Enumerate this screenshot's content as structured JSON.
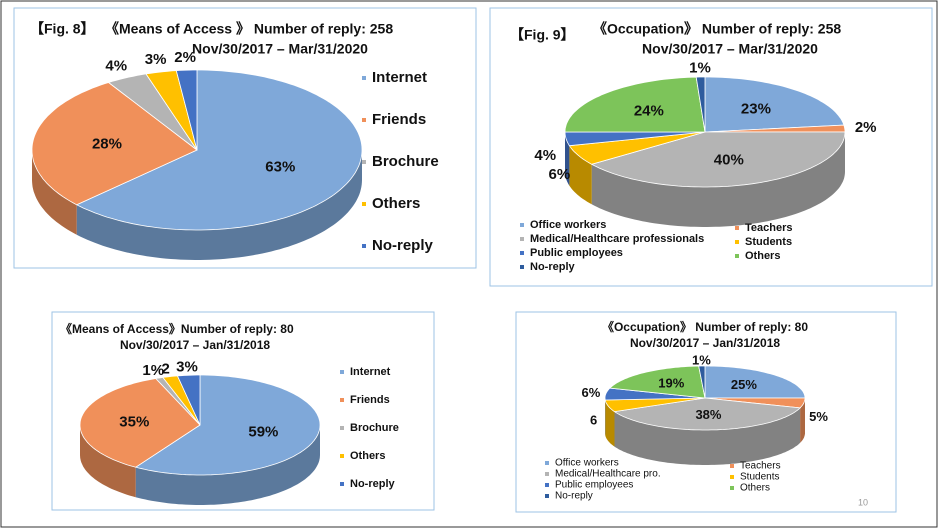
{
  "page_number": "10",
  "chart_data": [
    {
      "type": "pie",
      "figure_label": "【Fig. 8】",
      "title": "《Means of Access 》 Number of reply: 258",
      "subtitle": "Nov/30/2017 – Mar/31/2020",
      "legend": "right",
      "series": [
        {
          "name": "Internet",
          "color": "#7fa8d9",
          "values": [
            63
          ]
        },
        {
          "name": "Friends",
          "color": "#f0905a",
          "values": [
            28
          ]
        },
        {
          "name": "Brochure",
          "color": "#b4b4b4",
          "values": [
            4
          ]
        },
        {
          "name": "Others",
          "color": "#ffc000",
          "values": [
            3
          ]
        },
        {
          "name": "No-reply",
          "color": "#4472c4",
          "values": [
            2
          ]
        }
      ]
    },
    {
      "type": "pie",
      "figure_label": "【Fig. 9】",
      "title": "《Occupation》 Number of reply: 258",
      "subtitle": "Nov/30/2017 – Mar/31/2020",
      "legend": "bottom",
      "series": [
        {
          "name": "Office workers",
          "color": "#7fa8d9",
          "values": [
            23
          ]
        },
        {
          "name": "Teachers",
          "color": "#f0905a",
          "values": [
            2
          ]
        },
        {
          "name": "Medical/Healthcare professionals",
          "color": "#b4b4b4",
          "values": [
            40
          ]
        },
        {
          "name": "Students",
          "color": "#ffc000",
          "values": [
            6
          ]
        },
        {
          "name": "Public employees",
          "color": "#4472c4",
          "values": [
            4
          ]
        },
        {
          "name": "Others",
          "color": "#7dc45a",
          "values": [
            24
          ]
        },
        {
          "name": "No-reply",
          "color": "#2e5c9e",
          "values": [
            1
          ]
        }
      ]
    },
    {
      "type": "pie",
      "title": "《Means of Access》Number of reply: 80",
      "subtitle": "Nov/30/2017 – Jan/31/2018",
      "legend": "right",
      "series": [
        {
          "name": "Internet",
          "color": "#7fa8d9",
          "values": [
            59
          ]
        },
        {
          "name": "Friends",
          "color": "#f0905a",
          "values": [
            35
          ]
        },
        {
          "name": "Brochure",
          "color": "#b4b4b4",
          "values": [
            1
          ]
        },
        {
          "name": "Others",
          "color": "#ffc000",
          "values": [
            2
          ],
          "value_labels": [
            "2"
          ]
        },
        {
          "name": "No-reply",
          "color": "#4472c4",
          "values": [
            3
          ]
        }
      ]
    },
    {
      "type": "pie",
      "title": "《Occupation》 Number of reply: 80",
      "subtitle": "Nov/30/2017 – Jan/31/2018",
      "legend": "bottom",
      "series": [
        {
          "name": "Office workers",
          "color": "#7fa8d9",
          "values": [
            25
          ]
        },
        {
          "name": "Teachers",
          "color": "#f0905a",
          "values": [
            5
          ]
        },
        {
          "name": "Medical/Healthcare pro.",
          "color": "#b4b4b4",
          "values": [
            38
          ]
        },
        {
          "name": "Students",
          "color": "#ffc000",
          "values": [
            6
          ],
          "value_labels": [
            "6"
          ]
        },
        {
          "name": "Public employees",
          "color": "#4472c4",
          "values": [
            6
          ]
        },
        {
          "name": "Others",
          "color": "#7dc45a",
          "values": [
            19
          ]
        },
        {
          "name": "No-reply",
          "color": "#2e5c9e",
          "values": [
            1
          ]
        }
      ]
    }
  ]
}
